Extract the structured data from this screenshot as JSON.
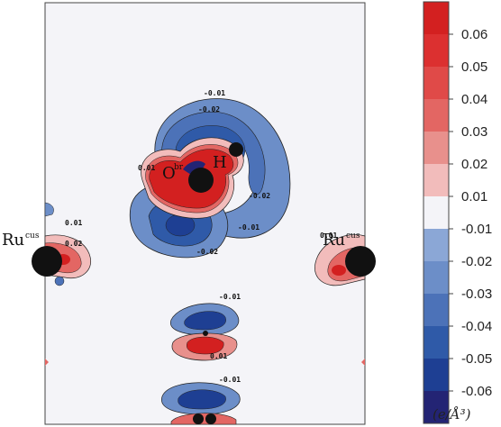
{
  "atoms": {
    "ru_left": "Ru",
    "ru_left_sup": "cus",
    "ru_right": "Ru",
    "ru_right_sup": "cus",
    "oxygen": "O",
    "oxygen_sup": "br",
    "hydrogen": "H"
  },
  "contour_labels": {
    "top_a": "-0.01",
    "top_b": "-0.02",
    "oh_left_pos": "0.01",
    "oh_right_neg": "-0.02",
    "oh_lower_neg": "-0.01",
    "oh_bottom_neg": "-0.02",
    "left_pos_a": "0.01",
    "left_pos_b": "0.02",
    "right_pos": "0.01",
    "mid_neg": "-0.01",
    "mid_pos": "0.01",
    "bottom_neg": "-0.01"
  },
  "colorbar": {
    "ticks": [
      "0.06",
      "0.05",
      "0.04",
      "0.03",
      "0.02",
      "0.01",
      "-0.01",
      "-0.02",
      "-0.03",
      "-0.04",
      "-0.05",
      "-0.06"
    ],
    "unit": "(e/Å³)",
    "levels": [
      "#d32020",
      "#dc3030",
      "#e04a48",
      "#e36663",
      "#e8908c",
      "#f2bcbb",
      "#f4f4f8",
      "#8ba7d6",
      "#6c8ec8",
      "#4c72b8",
      "#2f5aa8",
      "#1e3f93",
      "#232474"
    ]
  }
}
